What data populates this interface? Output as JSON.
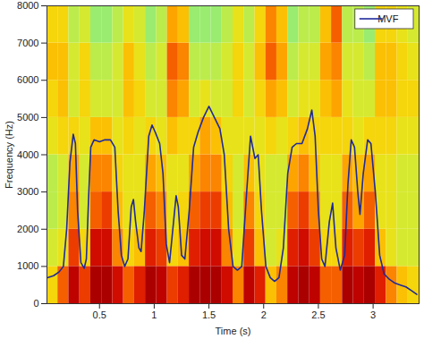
{
  "chart_data": {
    "type": "heatmap",
    "x_label": "Time (s)",
    "y_label": "Frequency (Hz)",
    "xlim": [
      0.02,
      3.42
    ],
    "xticks": [
      0.5,
      1,
      1.5,
      2,
      2.5,
      3
    ],
    "ylim": [
      0,
      8000
    ],
    "yticks": [
      0,
      1000,
      2000,
      3000,
      4000,
      5000,
      6000,
      7000,
      8000
    ],
    "legend": "upper right",
    "heatmap": {
      "x_edges": [
        0.02,
        0.12,
        0.22,
        0.32,
        0.42,
        0.52,
        0.62,
        0.72,
        0.82,
        0.92,
        1.02,
        1.12,
        1.22,
        1.32,
        1.42,
        1.52,
        1.62,
        1.72,
        1.82,
        1.92,
        2.02,
        2.12,
        2.22,
        2.32,
        2.42,
        2.52,
        2.62,
        2.72,
        2.82,
        2.92,
        3.02,
        3.12,
        3.22,
        3.32,
        3.42
      ],
      "y_edges": [
        0,
        1000,
        2000,
        3000,
        4000,
        5000,
        6000,
        7000,
        8000
      ],
      "color_range": [
        0,
        1
      ],
      "values": [
        [
          0.55,
          0.45,
          0.4,
          0.4,
          0.5,
          0.55,
          0.6,
          0.55
        ],
        [
          0.75,
          0.5,
          0.45,
          0.45,
          0.55,
          0.6,
          0.6,
          0.55
        ],
        [
          0.95,
          0.8,
          0.7,
          0.65,
          0.55,
          0.45,
          0.45,
          0.4
        ],
        [
          0.8,
          0.55,
          0.45,
          0.45,
          0.5,
          0.55,
          0.55,
          0.45
        ],
        [
          1,
          0.9,
          0.75,
          0.7,
          0.6,
          0.45,
          0.4,
          0.35
        ],
        [
          1,
          0.9,
          0.8,
          0.7,
          0.6,
          0.45,
          0.4,
          0.35
        ],
        [
          0.9,
          0.7,
          0.6,
          0.55,
          0.5,
          0.45,
          0.45,
          0.4
        ],
        [
          0.75,
          0.55,
          0.5,
          0.5,
          0.55,
          0.6,
          0.6,
          0.5
        ],
        [
          0.85,
          0.6,
          0.5,
          0.5,
          0.5,
          0.55,
          0.5,
          0.45
        ],
        [
          1,
          0.85,
          0.75,
          0.65,
          0.55,
          0.45,
          0.4,
          0.35
        ],
        [
          0.95,
          0.8,
          0.7,
          0.6,
          0.5,
          0.45,
          0.45,
          0.4
        ],
        [
          0.8,
          0.55,
          0.5,
          0.5,
          0.6,
          0.7,
          0.75,
          0.65
        ],
        [
          0.85,
          0.6,
          0.55,
          0.5,
          0.55,
          0.65,
          0.7,
          0.6
        ],
        [
          1,
          0.85,
          0.75,
          0.65,
          0.55,
          0.45,
          0.4,
          0.35
        ],
        [
          1,
          0.9,
          0.8,
          0.7,
          0.65,
          0.5,
          0.4,
          0.35
        ],
        [
          1,
          0.9,
          0.8,
          0.7,
          0.6,
          0.45,
          0.4,
          0.35
        ],
        [
          0.9,
          0.7,
          0.6,
          0.55,
          0.5,
          0.45,
          0.45,
          0.4
        ],
        [
          0.7,
          0.5,
          0.45,
          0.45,
          0.5,
          0.55,
          0.55,
          0.5
        ],
        [
          0.95,
          0.8,
          0.7,
          0.6,
          0.5,
          0.45,
          0.45,
          0.4
        ],
        [
          0.85,
          0.6,
          0.55,
          0.5,
          0.5,
          0.55,
          0.6,
          0.55
        ],
        [
          0.6,
          0.45,
          0.45,
          0.45,
          0.55,
          0.65,
          0.75,
          0.7
        ],
        [
          0.7,
          0.5,
          0.45,
          0.45,
          0.5,
          0.6,
          0.65,
          0.6
        ],
        [
          0.95,
          0.85,
          0.75,
          0.65,
          0.55,
          0.45,
          0.4,
          0.35
        ],
        [
          1,
          0.9,
          0.8,
          0.7,
          0.6,
          0.5,
          0.45,
          0.4
        ],
        [
          0.95,
          0.8,
          0.7,
          0.6,
          0.55,
          0.5,
          0.45,
          0.4
        ],
        [
          0.75,
          0.55,
          0.5,
          0.5,
          0.55,
          0.6,
          0.65,
          0.6
        ],
        [
          0.75,
          0.55,
          0.5,
          0.5,
          0.55,
          0.65,
          0.7,
          0.75
        ],
        [
          1,
          0.85,
          0.75,
          0.65,
          0.55,
          0.5,
          0.45,
          0.4
        ],
        [
          0.95,
          0.8,
          0.65,
          0.6,
          0.5,
          0.45,
          0.45,
          0.4
        ],
        [
          1,
          0.85,
          0.75,
          0.65,
          0.55,
          0.45,
          0.4,
          0.35
        ],
        [
          0.85,
          0.6,
          0.5,
          0.5,
          0.55,
          0.6,
          0.6,
          0.55
        ],
        [
          0.7,
          0.5,
          0.5,
          0.5,
          0.55,
          0.6,
          0.6,
          0.55
        ],
        [
          0.6,
          0.45,
          0.45,
          0.45,
          0.5,
          0.55,
          0.55,
          0.5
        ],
        [
          0.55,
          0.45,
          0.45,
          0.45,
          0.5,
          0.55,
          0.5,
          0.45
        ]
      ]
    },
    "x": [
      0.03,
      0.08,
      0.13,
      0.17,
      0.2,
      0.23,
      0.26,
      0.28,
      0.3,
      0.33,
      0.36,
      0.38,
      0.4,
      0.42,
      0.45,
      0.5,
      0.55,
      0.6,
      0.64,
      0.67,
      0.7,
      0.73,
      0.76,
      0.79,
      0.81,
      0.83,
      0.86,
      0.88,
      0.91,
      0.95,
      0.98,
      1.01,
      1.05,
      1.08,
      1.11,
      1.14,
      1.17,
      1.2,
      1.22,
      1.25,
      1.28,
      1.32,
      1.36,
      1.4,
      1.45,
      1.5,
      1.55,
      1.6,
      1.64,
      1.68,
      1.72,
      1.76,
      1.8,
      1.84,
      1.88,
      1.9,
      1.92,
      1.95,
      1.98,
      2.02,
      2.06,
      2.1,
      2.14,
      2.18,
      2.22,
      2.26,
      2.3,
      2.35,
      2.4,
      2.44,
      2.47,
      2.5,
      2.53,
      2.56,
      2.6,
      2.63,
      2.66,
      2.7,
      2.74,
      2.77,
      2.8,
      2.83,
      2.86,
      2.88,
      2.91,
      2.95,
      2.98,
      3.02,
      3.06,
      3.1,
      3.15,
      3.2,
      3.25,
      3.3,
      3.35,
      3.4
    ],
    "series": [
      {
        "name": "MVF",
        "type": "line",
        "color": "#1f2a9a",
        "values": [
          700,
          750,
          850,
          1000,
          2000,
          3800,
          4550,
          4300,
          2500,
          1100,
          950,
          1200,
          2800,
          4200,
          4400,
          4350,
          4400,
          4400,
          4200,
          2500,
          1300,
          1000,
          1200,
          2600,
          2800,
          2200,
          1500,
          1400,
          2500,
          4500,
          4800,
          4600,
          4300,
          3500,
          1600,
          1100,
          2000,
          2900,
          2600,
          1300,
          1200,
          2500,
          4200,
          4600,
          5000,
          5300,
          5000,
          4700,
          4000,
          2000,
          1000,
          900,
          1000,
          2800,
          4500,
          4200,
          3900,
          4000,
          2500,
          1000,
          700,
          600,
          700,
          1500,
          3500,
          4200,
          4300,
          4300,
          4700,
          5200,
          4500,
          2500,
          1200,
          1000,
          2200,
          2700,
          1500,
          900,
          1300,
          3200,
          4400,
          4200,
          3000,
          2400,
          3500,
          4400,
          4300,
          3000,
          1300,
          800,
          650,
          550,
          500,
          450,
          350,
          250
        ]
      }
    ]
  }
}
